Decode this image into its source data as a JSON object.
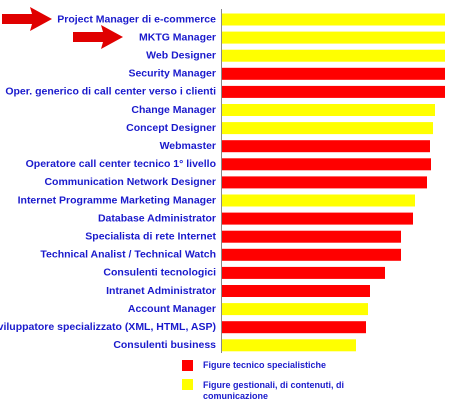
{
  "chart_data": {
    "type": "bar",
    "orientation": "horizontal",
    "categories": [
      "Project Manager di e-commerce",
      "MKTG Manager",
      "Web Designer",
      "Security Manager",
      "Oper. generico di call center verso i clienti",
      "Change Manager",
      "Concept Designer",
      "Webmaster",
      "Operatore call center tecnico 1° livello",
      "Communication Network Designer",
      "Internet Programme Marketing Manager",
      "Database Administrator",
      "Specialista di rete Internet",
      "Technical Analist / Technical Watch",
      "Consulenti tecnologici",
      "Intranet Administrator",
      "Account Manager",
      "Sviluppatore specializzato (XML, HTML, ASP)",
      "Consulenti business"
    ],
    "series": [
      {
        "name": "Figure tecnico  specialistiche",
        "color": "#ff0000",
        "values": [
          null,
          null,
          null,
          223,
          223,
          null,
          null,
          208,
          209,
          205,
          null,
          191,
          179,
          179,
          163,
          148,
          null,
          144,
          null
        ]
      },
      {
        "name": "Figure gestionali, di contenuti, di comunicazione",
        "color": "#ffff00",
        "values": [
          223,
          223,
          223,
          null,
          null,
          213,
          211,
          null,
          null,
          null,
          193,
          null,
          null,
          null,
          null,
          null,
          146,
          null,
          134
        ]
      }
    ]
  }
}
